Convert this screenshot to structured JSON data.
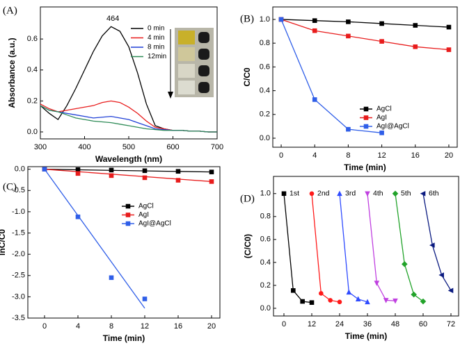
{
  "chart_data": [
    {
      "type": "line",
      "panel_label": "(A)",
      "x_label": "Wavelength (nm)",
      "y_label": "Absorbance (a.u.)",
      "annotation": {
        "text": "464",
        "x": 464,
        "y": 0.73
      },
      "x": [
        300,
        320,
        340,
        360,
        380,
        400,
        420,
        440,
        460,
        480,
        500,
        520,
        540,
        560,
        580,
        600,
        620,
        640,
        660,
        680,
        700
      ],
      "series": [
        {
          "name": "0 min",
          "color": "#000000",
          "values": [
            0.17,
            0.12,
            0.08,
            0.17,
            0.28,
            0.4,
            0.52,
            0.62,
            0.68,
            0.65,
            0.55,
            0.38,
            0.18,
            0.04,
            0.02,
            0.01,
            0.01,
            0.005,
            0.005,
            0,
            0
          ]
        },
        {
          "name": "4 min",
          "color": "#e81c1c",
          "values": [
            0.18,
            0.15,
            0.13,
            0.14,
            0.15,
            0.16,
            0.17,
            0.19,
            0.2,
            0.19,
            0.16,
            0.12,
            0.07,
            0.03,
            0.02,
            0.01,
            0.01,
            0.005,
            0.005,
            0,
            0
          ]
        },
        {
          "name": "8 min",
          "color": "#1f3fd6",
          "values": [
            0.17,
            0.14,
            0.13,
            0.12,
            0.11,
            0.1,
            0.09,
            0.095,
            0.1,
            0.09,
            0.08,
            0.06,
            0.04,
            0.02,
            0.015,
            0.01,
            0.01,
            0.005,
            0.005,
            0,
            0
          ]
        },
        {
          "name": "12min",
          "color": "#2e8b57",
          "values": [
            0.17,
            0.14,
            0.13,
            0.11,
            0.09,
            0.08,
            0.07,
            0.065,
            0.06,
            0.05,
            0.04,
            0.03,
            0.02,
            0.015,
            0.01,
            0.01,
            0.01,
            0.005,
            0.005,
            0,
            0
          ]
        }
      ],
      "xlim": [
        300,
        700
      ],
      "xticks": [
        300,
        400,
        500,
        600,
        700
      ],
      "ylim": [
        -0.045,
        0.807
      ],
      "yticks": [
        {
          "value": 0,
          "label": "0.0"
        },
        0.2,
        0.4,
        0.6
      ]
    },
    {
      "type": "line",
      "panel_label": "(B)",
      "x_label": "Time (min)",
      "y_label": "C/C0",
      "series": [
        {
          "name": "AgCl",
          "color": "#000000",
          "marker": "square",
          "x": [
            0,
            4,
            8,
            12,
            16,
            20
          ],
          "values": [
            1,
            0.99,
            0.98,
            0.965,
            0.95,
            0.935
          ]
        },
        {
          "name": "AgI",
          "color": "#e81c1c",
          "marker": "square",
          "x": [
            0,
            4,
            8,
            12,
            16,
            20
          ],
          "values": [
            1,
            0.905,
            0.86,
            0.815,
            0.77,
            0.745
          ]
        },
        {
          "name": "AgI@AgCl",
          "color": "#2f5ee8",
          "marker": "square",
          "x": [
            0,
            4,
            8,
            12
          ],
          "values": [
            1,
            0.325,
            0.075,
            0.045
          ]
        }
      ],
      "xlim": [
        -1,
        21
      ],
      "xticks": [
        0,
        4,
        8,
        12,
        16,
        20
      ],
      "ylim": [
        -0.076,
        1.105
      ],
      "yticks": [
        {
          "value": 0,
          "label": "0.0"
        },
        0.2,
        0.4,
        0.6,
        0.8,
        {
          "value": 1,
          "label": "1.0"
        }
      ]
    },
    {
      "type": "scatter",
      "panel_label": "(C)",
      "x_label": "Time (min)",
      "y_label": "lnC/C0",
      "series": [
        {
          "name": "AgCl",
          "color": "#000000",
          "marker": "square",
          "x": [
            0,
            4,
            8,
            12,
            16,
            20
          ],
          "values": [
            0,
            -0.01,
            -0.02,
            -0.035,
            -0.05,
            -0.065
          ],
          "fit": {
            "x": [
              0,
              20
            ],
            "values": [
              0,
              -0.065
            ]
          }
        },
        {
          "name": "AgI",
          "color": "#e81c1c",
          "marker": "square",
          "x": [
            0,
            4,
            8,
            12,
            16,
            20
          ],
          "values": [
            0,
            -0.1,
            -0.15,
            -0.2,
            -0.26,
            -0.29
          ],
          "fit": {
            "x": [
              0,
              20
            ],
            "values": [
              0,
              -0.29
            ]
          }
        },
        {
          "name": "AgI@AgCl",
          "color": "#2f5ee8",
          "marker": "square",
          "x": [
            0,
            4,
            8,
            12
          ],
          "values": [
            0,
            -1.12,
            -2.55,
            -3.05
          ],
          "fit": {
            "x": [
              0,
              12
            ],
            "values": [
              0,
              -3.27
            ]
          }
        }
      ],
      "xlim": [
        -2,
        21
      ],
      "xticks": [
        0,
        4,
        8,
        12,
        16,
        20
      ],
      "ylim": [
        -3.5,
        0.06
      ],
      "yticks": [
        {
          "value": 0,
          "label": "0.0"
        },
        -0.5,
        {
          "value": -1,
          "label": "-1.0"
        },
        -1.5,
        {
          "value": -2,
          "label": "-2.0"
        },
        -2.5,
        {
          "value": -3,
          "label": "-3.0"
        },
        -3.5
      ]
    },
    {
      "type": "line",
      "panel_label": "(D)",
      "x_label": "Time (min)",
      "y_label": "(C/C0)",
      "series": [
        {
          "name": "1st",
          "color": "#000000",
          "marker": "square",
          "x": [
            0,
            4,
            8,
            12
          ],
          "values": [
            1,
            0.155,
            0.06,
            0.05
          ]
        },
        {
          "name": "2nd",
          "color": "#ff1a1a",
          "marker": "circle",
          "x": [
            12,
            16,
            20,
            24
          ],
          "values": [
            1,
            0.13,
            0.07,
            0.055
          ]
        },
        {
          "name": "3rd",
          "color": "#2f4bff",
          "marker": "triangle-up",
          "x": [
            24,
            28,
            32,
            36
          ],
          "values": [
            1,
            0.14,
            0.08,
            0.055
          ]
        },
        {
          "name": "4th",
          "color": "#c040e0",
          "marker": "triangle-down",
          "x": [
            36,
            40,
            44,
            48
          ],
          "values": [
            1,
            0.22,
            0.07,
            0.065
          ]
        },
        {
          "name": "5th",
          "color": "#22a32a",
          "marker": "diamond",
          "x": [
            48,
            52,
            56,
            60
          ],
          "values": [
            1,
            0.385,
            0.12,
            0.06
          ]
        },
        {
          "name": "6th",
          "color": "#0a1a80",
          "marker": "triangle-left",
          "x": [
            60,
            64,
            68,
            72
          ],
          "values": [
            1,
            0.55,
            0.29,
            0.155
          ]
        }
      ],
      "xlim": [
        -4.5,
        75.3
      ],
      "xticks": [
        0,
        12,
        24,
        36,
        48,
        60,
        72
      ],
      "ylim": [
        -0.067,
        1.15
      ],
      "yticks": [
        {
          "value": 0,
          "label": "0.0"
        },
        0.2,
        0.4,
        0.6,
        0.8,
        {
          "value": 1,
          "label": "1.0"
        }
      ]
    }
  ]
}
